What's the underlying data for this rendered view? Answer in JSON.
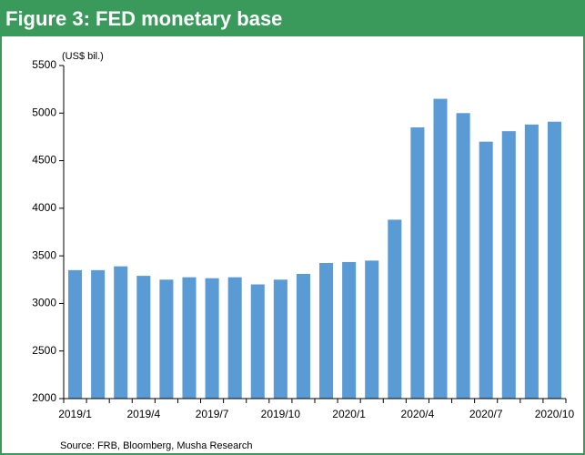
{
  "chart_data": {
    "type": "bar",
    "title": "Figure 3: FED monetary base",
    "y_label": "(US$ bil.)",
    "source": "Source: FRB, Bloomberg, Musha Research",
    "categories": [
      "2019/1",
      null,
      null,
      "2019/4",
      null,
      null,
      "2019/7",
      null,
      null,
      "2019/10",
      null,
      null,
      "2020/1",
      null,
      null,
      "2020/4",
      null,
      null,
      "2020/7",
      null,
      null,
      "2020/10"
    ],
    "values": [
      3350,
      3350,
      3390,
      3290,
      3250,
      3275,
      3265,
      3275,
      3200,
      3250,
      3310,
      3425,
      3435,
      3450,
      3880,
      4850,
      5150,
      5000,
      4700,
      4810,
      4880,
      4910
    ],
    "color": "#5b9bd5",
    "ylim": [
      2000,
      5500
    ],
    "yticks": [
      2000,
      2500,
      3000,
      3500,
      4000,
      4500,
      5000,
      5500
    ],
    "grid": false
  }
}
